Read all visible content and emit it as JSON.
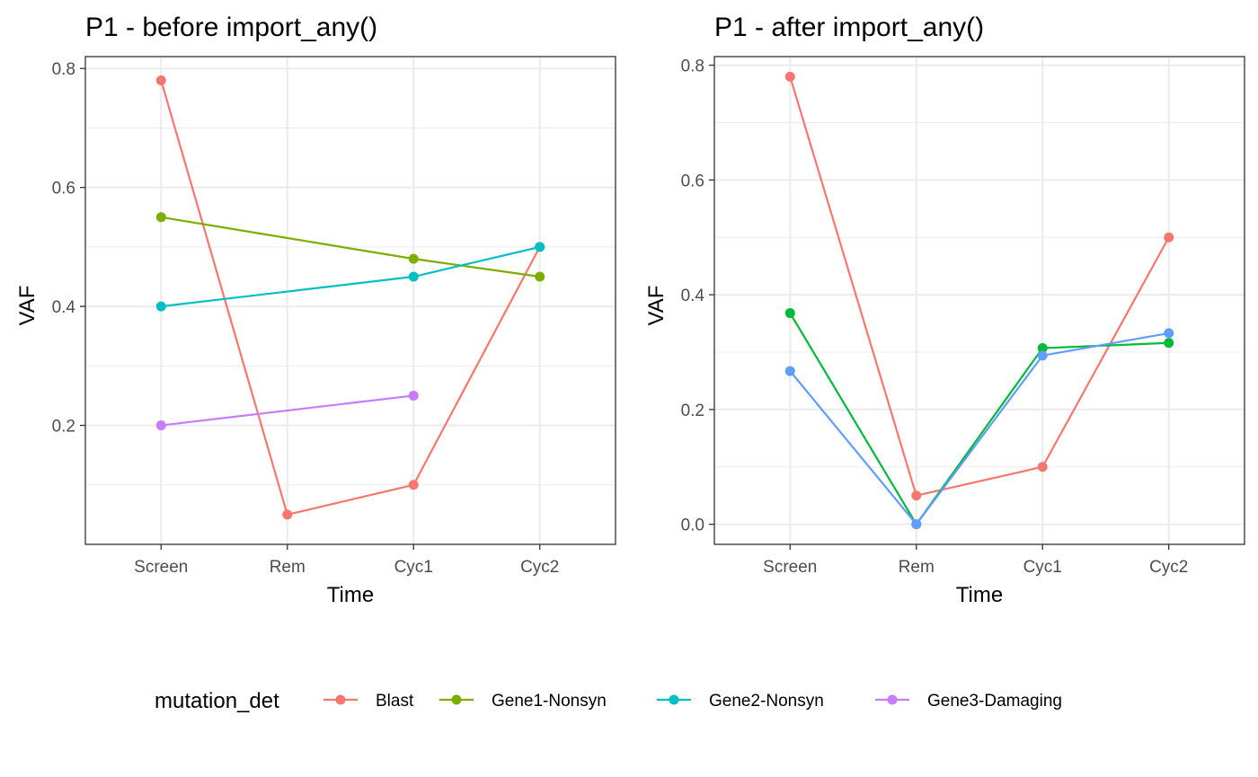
{
  "legend": {
    "title": "mutation_det",
    "items": [
      {
        "label": "Blast",
        "color": "#F8766D"
      },
      {
        "label": "Gene1-Nonsyn",
        "color": "#7CAE00"
      },
      {
        "label": "Gene2-Nonsyn",
        "color": "#00BFC4"
      },
      {
        "label": "Gene3-Damaging",
        "color": "#C77CFF"
      }
    ]
  },
  "chart_data": [
    {
      "type": "line",
      "title": "P1 - before import_any()",
      "xlabel": "Time",
      "ylabel": "VAF",
      "categories": [
        "Screen",
        "Rem",
        "Cyc1",
        "Cyc2"
      ],
      "ylim": [
        0.0,
        0.82
      ],
      "yticks": [
        0.2,
        0.4,
        0.6,
        0.8
      ],
      "yticklabels": [
        "0.2",
        "0.4",
        "0.6",
        "0.8"
      ],
      "grid": true,
      "series": [
        {
          "name": "Blast",
          "color": "#F8766D",
          "values": [
            0.78,
            0.05,
            0.1,
            0.5
          ]
        },
        {
          "name": "Gene1-Nonsyn",
          "color": "#7CAE00",
          "values": [
            0.55,
            null,
            0.48,
            0.45
          ]
        },
        {
          "name": "Gene2-Nonsyn",
          "color": "#00BFC4",
          "values": [
            0.4,
            null,
            0.45,
            0.5
          ]
        },
        {
          "name": "Gene3-Damaging",
          "color": "#C77CFF",
          "values": [
            0.2,
            null,
            0.25,
            null
          ]
        }
      ]
    },
    {
      "type": "line",
      "title": "P1 - after import_any()",
      "xlabel": "Time",
      "ylabel": "VAF",
      "categories": [
        "Screen",
        "Rem",
        "Cyc1",
        "Cyc2"
      ],
      "ylim": [
        -0.035,
        0.815
      ],
      "yticks": [
        0.0,
        0.2,
        0.4,
        0.6,
        0.8
      ],
      "yticklabels": [
        "0.0",
        "0.2",
        "0.4",
        "0.6",
        "0.8"
      ],
      "grid": true,
      "series": [
        {
          "color": "#F8766D",
          "values": [
            0.78,
            0.05,
            0.1,
            0.5
          ]
        },
        {
          "color": "#00BA38",
          "values": [
            0.368,
            0.0,
            0.307,
            0.316
          ]
        },
        {
          "color": "#619CFF",
          "values": [
            0.267,
            0.0,
            0.294,
            0.333
          ]
        }
      ]
    }
  ]
}
